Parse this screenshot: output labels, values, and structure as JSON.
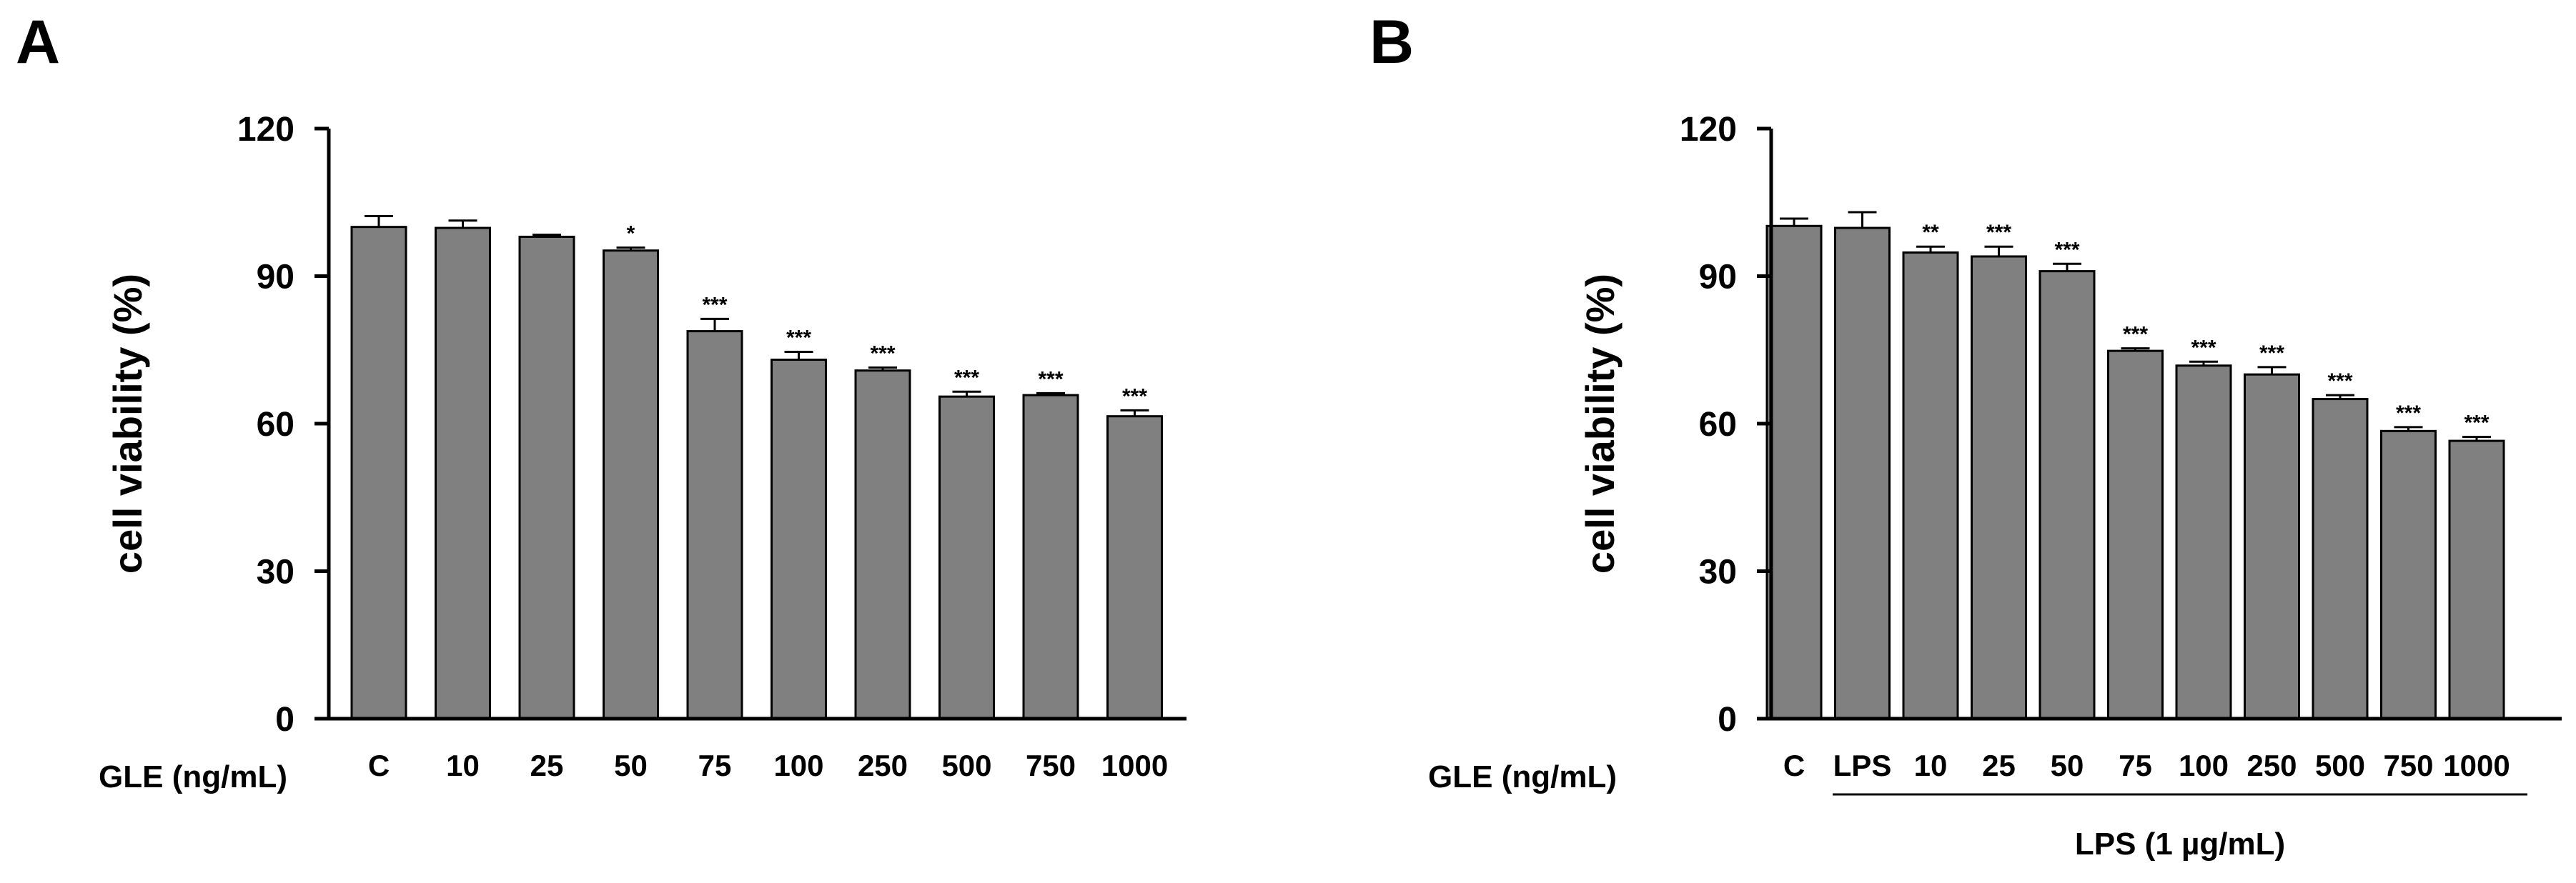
{
  "chart_data": [
    {
      "panel": "A",
      "type": "bar",
      "ylabel": "cell viability (%)",
      "x_title": "GLE (ng/mL)",
      "ylim": [
        0,
        120
      ],
      "yticks": [
        "0",
        "30",
        "60",
        "90",
        "120"
      ],
      "ytick_values": [
        0,
        30,
        60,
        90,
        120
      ],
      "categories": [
        "C",
        "10",
        "25",
        "50",
        "75",
        "100",
        "250",
        "500",
        "750",
        "1000"
      ],
      "values": [
        100,
        99.8,
        98,
        95.2,
        78.8,
        73,
        70.8,
        65.5,
        65.8,
        61.5
      ],
      "errors": [
        2.2,
        1.5,
        0.4,
        0.6,
        2.5,
        1.6,
        0.6,
        1.0,
        0.4,
        1.2
      ],
      "significance": [
        "",
        "",
        "",
        "*",
        "***",
        "***",
        "***",
        "***",
        "***",
        "***"
      ],
      "bar_color": "#808080",
      "group_label": ""
    },
    {
      "panel": "B",
      "type": "bar",
      "ylabel": "cell viability (%)",
      "x_title": "GLE (ng/mL)",
      "ylim": [
        0,
        120
      ],
      "yticks": [
        "0",
        "30",
        "60",
        "90",
        "120"
      ],
      "ytick_values": [
        0,
        30,
        60,
        90,
        120
      ],
      "categories": [
        "C",
        "LPS",
        "10",
        "25",
        "50",
        "75",
        "100",
        "250",
        "500",
        "750",
        "1000"
      ],
      "values": [
        100.2,
        99.8,
        94.8,
        94,
        91,
        74.8,
        71.8,
        70,
        65,
        58.5,
        56.5
      ],
      "errors": [
        1.5,
        3.2,
        1.2,
        2.0,
        1.5,
        0.5,
        0.8,
        1.5,
        0.8,
        0.8,
        0.8
      ],
      "significance": [
        "",
        "",
        "**",
        "***",
        "***",
        "***",
        "***",
        "***",
        "***",
        "***",
        "***"
      ],
      "bar_color": "#808080",
      "group_label": "LPS (1 µg/mL)"
    }
  ]
}
